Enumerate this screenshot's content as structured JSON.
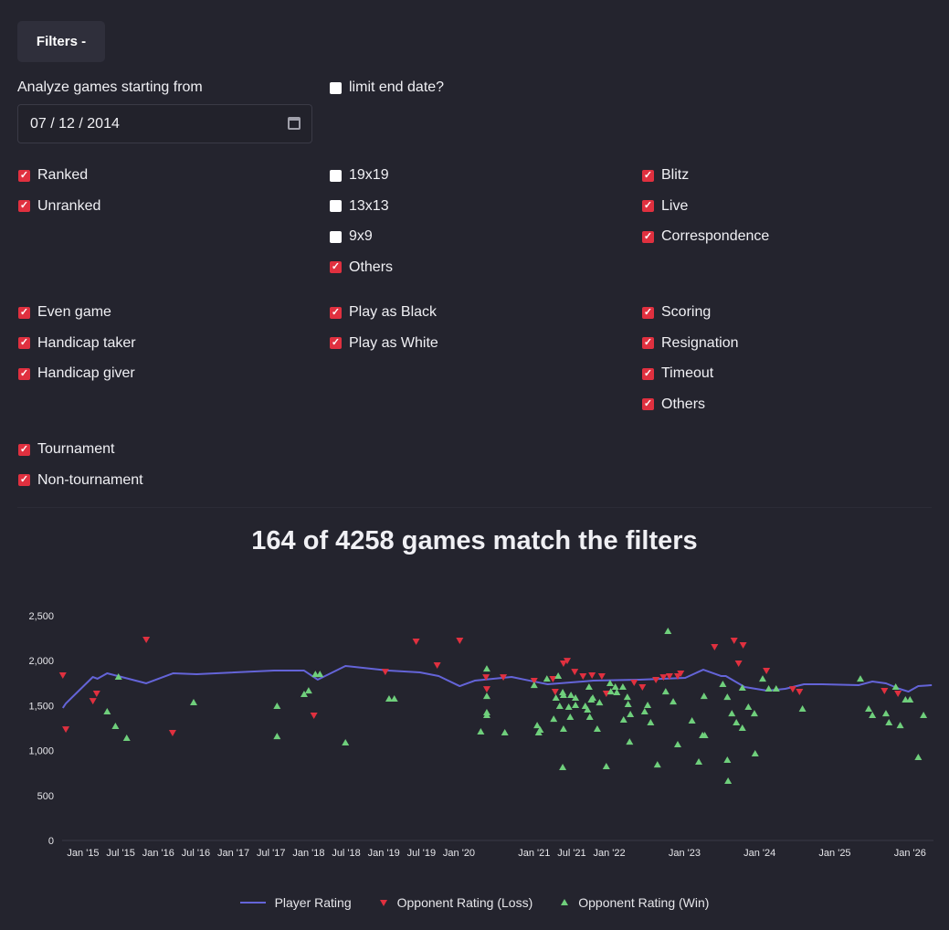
{
  "filters_button": "Filters -",
  "start_date_label": "Analyze games starting from",
  "start_date_value": "07 / 12 / 2014",
  "limit_end_date": {
    "label": "limit end date?",
    "checked": false
  },
  "checkbox_groups": [
    [
      {
        "label": "Ranked",
        "checked": true
      },
      {
        "label": "Unranked",
        "checked": true
      }
    ],
    [
      {
        "label": "19x19",
        "checked": false
      },
      {
        "label": "13x13",
        "checked": false
      },
      {
        "label": "9x9",
        "checked": false
      },
      {
        "label": "Others",
        "checked": true
      }
    ],
    [
      {
        "label": "Blitz",
        "checked": true
      },
      {
        "label": "Live",
        "checked": true
      },
      {
        "label": "Correspondence",
        "checked": true
      }
    ],
    [
      {
        "label": "Even game",
        "checked": true
      },
      {
        "label": "Handicap taker",
        "checked": true
      },
      {
        "label": "Handicap giver",
        "checked": true
      }
    ],
    [
      {
        "label": "Play as Black",
        "checked": true
      },
      {
        "label": "Play as White",
        "checked": true
      }
    ],
    [
      {
        "label": "Scoring",
        "checked": true
      },
      {
        "label": "Resignation",
        "checked": true
      },
      {
        "label": "Timeout",
        "checked": true
      },
      {
        "label": "Others",
        "checked": true
      }
    ],
    [
      {
        "label": "Tournament",
        "checked": true
      },
      {
        "label": "Non-tournament",
        "checked": true
      }
    ]
  ],
  "summary": "164 of 4258 games match the filters",
  "colors": {
    "accent": "#e0303f",
    "line": "#6464d8",
    "win": "#6fcf7c",
    "loss": "#e0303f"
  },
  "chart_data": {
    "type": "line+scatter",
    "xlabel": "",
    "ylabel": "",
    "ylim": [
      0,
      2500
    ],
    "yticks": [
      0,
      500,
      1000,
      1500,
      2000,
      2500
    ],
    "ytick_labels": [
      "0",
      "500",
      "1,000",
      "1,500",
      "2,000",
      "2,500"
    ],
    "xticks": [
      {
        "x": 2015.0,
        "label": "Jan '15"
      },
      {
        "x": 2015.5,
        "label": "Jul '15"
      },
      {
        "x": 2016.0,
        "label": "Jan '16"
      },
      {
        "x": 2016.5,
        "label": "Jul '16"
      },
      {
        "x": 2017.0,
        "label": "Jan '17"
      },
      {
        "x": 2017.5,
        "label": "Jul '17"
      },
      {
        "x": 2018.0,
        "label": "Jan '18"
      },
      {
        "x": 2018.5,
        "label": "Jul '18"
      },
      {
        "x": 2019.0,
        "label": "Jan '19"
      },
      {
        "x": 2019.5,
        "label": "Jul '19"
      },
      {
        "x": 2020.0,
        "label": "Jan '20"
      },
      {
        "x": 2021.0,
        "label": "Jan '21"
      },
      {
        "x": 2021.5,
        "label": "Jul '21"
      },
      {
        "x": 2022.0,
        "label": "Jan '22"
      },
      {
        "x": 2023.0,
        "label": "Jan '23"
      },
      {
        "x": 2024.0,
        "label": "Jan '24"
      },
      {
        "x": 2025.0,
        "label": "Jan '25"
      },
      {
        "x": 2026.0,
        "label": "Jan '26"
      }
    ],
    "legend": [
      "Player Rating",
      "Opponent Rating (Loss)",
      "Opponent Rating (Win)"
    ],
    "legend_position": "bottom",
    "series": [
      {
        "name": "Player Rating",
        "kind": "line",
        "points": [
          [
            2014.73,
            1474
          ],
          [
            2014.77,
            1524
          ],
          [
            2015.13,
            1819
          ],
          [
            2015.19,
            1799
          ],
          [
            2015.32,
            1860
          ],
          [
            2015.84,
            1748
          ],
          [
            2016.2,
            1860
          ],
          [
            2016.51,
            1850
          ],
          [
            2017.54,
            1890
          ],
          [
            2017.94,
            1890
          ],
          [
            2018.12,
            1789
          ],
          [
            2018.49,
            1941
          ],
          [
            2019.06,
            1890
          ],
          [
            2019.48,
            1870
          ],
          [
            2019.73,
            1829
          ],
          [
            2020.01,
            1717
          ],
          [
            2020.21,
            1778
          ],
          [
            2020.7,
            1819
          ],
          [
            2020.94,
            1778
          ],
          [
            2021.18,
            1738
          ],
          [
            2021.79,
            1778
          ],
          [
            2022.4,
            1789
          ],
          [
            2023.01,
            1809
          ],
          [
            2023.25,
            1900
          ],
          [
            2023.49,
            1829
          ],
          [
            2023.55,
            1829
          ],
          [
            2023.8,
            1707
          ],
          [
            2024.1,
            1667
          ],
          [
            2024.34,
            1687
          ],
          [
            2024.59,
            1738
          ],
          [
            2024.83,
            1738
          ],
          [
            2025.32,
            1728
          ],
          [
            2025.5,
            1768
          ],
          [
            2025.68,
            1748
          ],
          [
            2025.86,
            1687
          ],
          [
            2025.98,
            1656
          ],
          [
            2026.11,
            1717
          ],
          [
            2026.29,
            1728
          ]
        ]
      },
      {
        "name": "Opponent Rating (Loss)",
        "kind": "scatter",
        "points": [
          [
            2014.73,
            1829
          ],
          [
            2014.77,
            1229
          ],
          [
            2015.13,
            1544
          ],
          [
            2015.18,
            1626
          ],
          [
            2015.84,
            2225
          ],
          [
            2016.19,
            1189
          ],
          [
            2018.07,
            1382
          ],
          [
            2019.02,
            1869
          ],
          [
            2019.43,
            2205
          ],
          [
            2019.71,
            1941
          ],
          [
            2020.01,
            2215
          ],
          [
            2020.36,
            1808
          ],
          [
            2020.37,
            1676
          ],
          [
            2020.59,
            1808
          ],
          [
            2021.0,
            1768
          ],
          [
            2021.25,
            1788
          ],
          [
            2021.28,
            1646
          ],
          [
            2021.39,
            1961
          ],
          [
            2021.44,
            1991
          ],
          [
            2021.54,
            1869
          ],
          [
            2021.65,
            1819
          ],
          [
            2021.77,
            1829
          ],
          [
            2021.9,
            1819
          ],
          [
            2021.96,
            1626
          ],
          [
            2022.33,
            1748
          ],
          [
            2022.44,
            1697
          ],
          [
            2022.62,
            1778
          ],
          [
            2022.72,
            1808
          ],
          [
            2022.8,
            1819
          ],
          [
            2022.91,
            1819
          ],
          [
            2022.95,
            1849
          ],
          [
            2023.4,
            2144
          ],
          [
            2023.66,
            2215
          ],
          [
            2023.78,
            2164
          ],
          [
            2023.72,
            1961
          ],
          [
            2024.09,
            1880
          ],
          [
            2024.44,
            1676
          ],
          [
            2024.53,
            1646
          ],
          [
            2025.66,
            1656
          ],
          [
            2025.84,
            1626
          ]
        ]
      },
      {
        "name": "Opponent Rating (Win)",
        "kind": "scatter",
        "points": [
          [
            2015.32,
            1443
          ],
          [
            2015.43,
            1280
          ],
          [
            2015.58,
            1148
          ],
          [
            2015.47,
            1829
          ],
          [
            2016.47,
            1545
          ],
          [
            2017.58,
            1504
          ],
          [
            2017.58,
            1168
          ],
          [
            2017.94,
            1636
          ],
          [
            2018.0,
            1676
          ],
          [
            2018.09,
            1859
          ],
          [
            2018.15,
            1859
          ],
          [
            2018.49,
            1097
          ],
          [
            2019.07,
            1585
          ],
          [
            2019.14,
            1585
          ],
          [
            2020.37,
            1920
          ],
          [
            2020.37,
            1615
          ],
          [
            2020.37,
            1433
          ],
          [
            2020.37,
            1402
          ],
          [
            2020.29,
            1219
          ],
          [
            2020.61,
            1209
          ],
          [
            2021.0,
            1737
          ],
          [
            2021.04,
            1290
          ],
          [
            2021.08,
            1240
          ],
          [
            2021.06,
            1209
          ],
          [
            2021.17,
            1808
          ],
          [
            2021.32,
            1839
          ],
          [
            2021.26,
            1361
          ],
          [
            2021.29,
            1595
          ],
          [
            2021.38,
            1656
          ],
          [
            2021.39,
            1626
          ],
          [
            2021.34,
            1504
          ],
          [
            2021.48,
            1382
          ],
          [
            2021.46,
            1494
          ],
          [
            2021.49,
            1626
          ],
          [
            2021.55,
            1595
          ],
          [
            2021.55,
            1514
          ],
          [
            2021.39,
            1250
          ],
          [
            2021.38,
            823
          ],
          [
            2021.68,
            1504
          ],
          [
            2021.71,
            1463
          ],
          [
            2021.74,
            1382
          ],
          [
            2021.76,
            1575
          ],
          [
            2021.78,
            1595
          ],
          [
            2021.73,
            1717
          ],
          [
            2021.84,
            1250
          ],
          [
            2021.87,
            1544
          ],
          [
            2021.96,
            833
          ],
          [
            2022.01,
            1758
          ],
          [
            2022.02,
            1666
          ],
          [
            2022.08,
            1717
          ],
          [
            2022.1,
            1656
          ],
          [
            2022.18,
            1717
          ],
          [
            2022.19,
            1351
          ],
          [
            2022.24,
            1605
          ],
          [
            2022.25,
            1524
          ],
          [
            2022.28,
            1412
          ],
          [
            2022.27,
            1107
          ],
          [
            2022.47,
            1443
          ],
          [
            2022.51,
            1514
          ],
          [
            2022.55,
            1321
          ],
          [
            2022.64,
            853
          ],
          [
            2022.75,
            1666
          ],
          [
            2022.85,
            1554
          ],
          [
            2022.78,
            2337
          ],
          [
            2022.91,
            1077
          ],
          [
            2023.1,
            1341
          ],
          [
            2023.19,
            884
          ],
          [
            2023.24,
            1179
          ],
          [
            2023.27,
            1179
          ],
          [
            2023.26,
            1615
          ],
          [
            2023.51,
            1748
          ],
          [
            2023.57,
            1605
          ],
          [
            2023.63,
            1422
          ],
          [
            2023.69,
            1321
          ],
          [
            2023.77,
            1260
          ],
          [
            2023.57,
            904
          ],
          [
            2023.58,
            671
          ],
          [
            2023.85,
            1494
          ],
          [
            2023.93,
            1422
          ],
          [
            2023.94,
            975
          ],
          [
            2023.77,
            1707
          ],
          [
            2024.04,
            1808
          ],
          [
            2024.12,
            1697
          ],
          [
            2024.22,
            1697
          ],
          [
            2024.57,
            1473
          ],
          [
            2025.34,
            1808
          ],
          [
            2025.45,
            1473
          ],
          [
            2025.5,
            1402
          ],
          [
            2025.68,
            1422
          ],
          [
            2025.72,
            1321
          ],
          [
            2025.81,
            1717
          ],
          [
            2025.87,
            1290
          ],
          [
            2025.94,
            1575
          ],
          [
            2026.0,
            1575
          ],
          [
            2026.11,
            935
          ],
          [
            2026.18,
            1402
          ]
        ]
      }
    ]
  }
}
